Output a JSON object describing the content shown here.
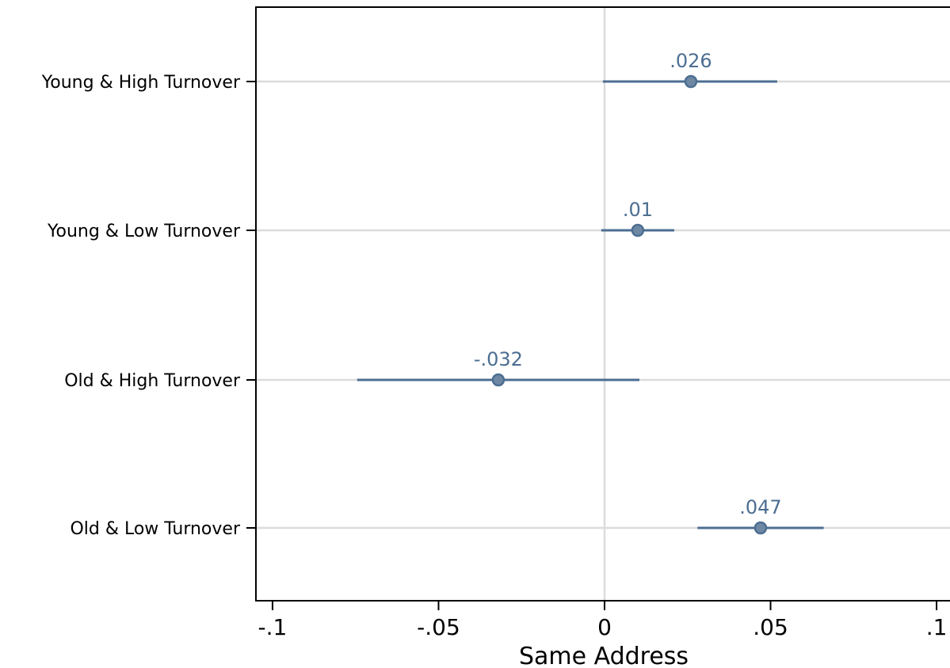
{
  "chart_data": {
    "type": "scatter",
    "orientation": "horizontal",
    "xlabel": "Same Address",
    "xlim": [
      -0.105,
      0.105
    ],
    "xticks": [
      -0.1,
      -0.05,
      0,
      0.05,
      0.1
    ],
    "xtick_labels": [
      "-.1",
      "-.05",
      "0",
      ".05",
      ".1"
    ],
    "reference_line": 0,
    "grid": true,
    "categories": [
      "Young & High Turnover",
      "Young & Low Turnover",
      "Old & High Turnover",
      "Old & Low Turnover"
    ],
    "series": [
      {
        "estimates": [
          0.026,
          0.01,
          -0.032,
          0.047
        ],
        "ci_low": [
          -0.0005,
          -0.001,
          -0.0745,
          0.028
        ],
        "ci_high": [
          0.052,
          0.021,
          0.0105,
          0.066
        ],
        "labels": [
          ".026",
          ".01",
          "-.032",
          ".047"
        ]
      }
    ],
    "colors": {
      "marker": "#6e88a4",
      "marker_edge": "#4c6e92",
      "line": "#4c6e92",
      "label": "#4c6e92",
      "grid": "#dcdcdc"
    }
  }
}
